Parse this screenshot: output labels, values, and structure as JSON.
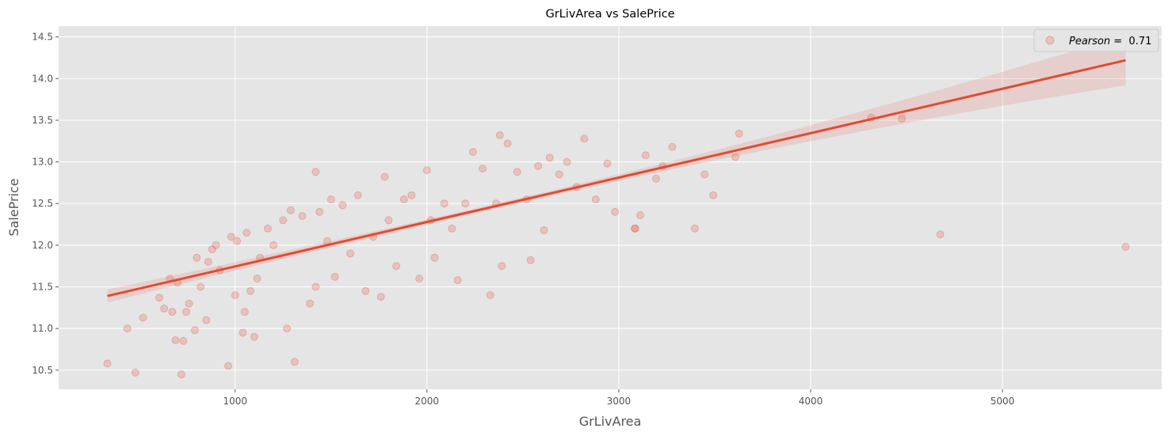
{
  "chart_data": {
    "type": "scatter",
    "title": "GrLivArea vs SalePrice",
    "xlabel": "GrLivArea",
    "ylabel": "SalePrice",
    "xlim": [
      80,
      5830
    ],
    "ylim": [
      10.27,
      14.63
    ],
    "x_ticks": [
      1000,
      2000,
      3000,
      4000,
      5000
    ],
    "x_tick_labels": [
      "1000",
      "2000",
      "3000",
      "4000",
      "5000"
    ],
    "y_ticks": [
      10.5,
      11.0,
      11.5,
      12.0,
      12.5,
      13.0,
      13.5,
      14.0,
      14.5
    ],
    "y_tick_labels": [
      "10.5",
      "11.0",
      "11.5",
      "12.0",
      "12.5",
      "13.0",
      "13.5",
      "14.0",
      "14.5"
    ],
    "grid": true,
    "legend": {
      "position": "top-right",
      "label_prefix": "Pearson",
      "label_suffix": " =  0.71"
    },
    "colors": {
      "points": "#E24A33",
      "line": "#E24A33",
      "background": "#E5E5E5",
      "grid": "#FFFFFF"
    },
    "regression": {
      "x": [
        334,
        5642
      ],
      "y": [
        11.39,
        14.22
      ],
      "ci_width_ends": [
        0.06,
        0.27
      ]
    },
    "series": [
      {
        "x": [
          334,
          438,
          480,
          520,
          605,
          630,
          660,
          672,
          689,
          700,
          720,
          730,
          745,
          760,
          790,
          800,
          820,
          850,
          860,
          880,
          900,
          920,
          964,
          980,
          1000,
          1010,
          1040,
          1050,
          1060,
          1080,
          1100,
          1115,
          1130,
          1170,
          1200,
          1250,
          1270,
          1290,
          1310,
          1350,
          1390,
          1420,
          1420,
          1440,
          1480,
          1500,
          1520,
          1560,
          1600,
          1640,
          1680,
          1720,
          1760,
          1780,
          1800,
          1840,
          1880,
          1920,
          1960,
          2000,
          2020,
          2040,
          2090,
          2130,
          2160,
          2200,
          2240,
          2290,
          2330,
          2360,
          2380,
          2390,
          2420,
          2470,
          2520,
          2540,
          2580,
          2610,
          2640,
          2690,
          2730,
          2780,
          2820,
          2880,
          2940,
          2980,
          3083,
          3086,
          3112,
          3140,
          3194,
          3228,
          3279,
          3396,
          3447,
          3493,
          3608,
          3627,
          4316,
          4476,
          4676,
          5642
        ],
        "y": [
          10.58,
          11.0,
          10.47,
          11.13,
          11.37,
          11.24,
          11.6,
          11.2,
          10.86,
          11.55,
          10.45,
          10.85,
          11.2,
          11.3,
          10.98,
          11.85,
          11.5,
          11.1,
          11.8,
          11.95,
          12.0,
          11.7,
          10.55,
          12.1,
          11.4,
          12.05,
          10.95,
          11.2,
          12.15,
          11.45,
          10.9,
          11.6,
          11.85,
          12.2,
          12.0,
          12.3,
          11.0,
          12.42,
          10.6,
          12.35,
          11.3,
          11.5,
          12.88,
          12.4,
          12.05,
          12.55,
          11.62,
          12.48,
          11.9,
          12.6,
          11.45,
          12.1,
          11.38,
          12.82,
          12.3,
          11.75,
          12.55,
          12.6,
          11.6,
          12.9,
          12.3,
          11.85,
          12.5,
          12.2,
          11.58,
          12.5,
          13.12,
          12.92,
          11.4,
          12.5,
          13.32,
          11.75,
          13.22,
          12.88,
          12.55,
          11.82,
          12.95,
          12.18,
          13.05,
          12.85,
          13.0,
          12.7,
          13.28,
          12.55,
          12.98,
          12.4,
          12.2,
          12.2,
          12.36,
          13.08,
          12.8,
          12.95,
          13.18,
          12.2,
          12.85,
          12.6,
          13.06,
          13.34,
          13.53,
          13.52,
          12.13,
          11.98
        ]
      }
    ]
  }
}
